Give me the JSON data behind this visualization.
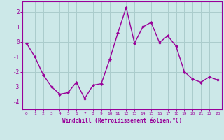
{
  "x": [
    0,
    1,
    2,
    3,
    4,
    5,
    6,
    7,
    8,
    9,
    10,
    11,
    12,
    13,
    14,
    15,
    16,
    17,
    18,
    19,
    20,
    21,
    22,
    23
  ],
  "y": [
    -0.1,
    -1.0,
    -2.2,
    -3.0,
    -3.5,
    -3.4,
    -2.7,
    -3.8,
    -2.9,
    -2.8,
    -1.2,
    0.6,
    2.3,
    -0.1,
    1.0,
    1.3,
    -0.05,
    0.4,
    -0.3,
    -2.0,
    -2.5,
    -2.7,
    -2.35,
    -2.55
  ],
  "line_color": "#990099",
  "marker": "D",
  "marker_size": 2.0,
  "background_color": "#cce8e8",
  "grid_color": "#aacccc",
  "xlabel": "Windchill (Refroidissement éolien,°C)",
  "xlabel_color": "#990099",
  "tick_color": "#990099",
  "ylim": [
    -4.5,
    2.7
  ],
  "xlim": [
    -0.5,
    23.5
  ],
  "yticks": [
    -4,
    -3,
    -2,
    -1,
    0,
    1,
    2
  ],
  "xticks": [
    0,
    1,
    2,
    3,
    4,
    5,
    6,
    7,
    8,
    9,
    10,
    11,
    12,
    13,
    14,
    15,
    16,
    17,
    18,
    19,
    20,
    21,
    22,
    23
  ],
  "xtick_labels": [
    "0",
    "1",
    "2",
    "3",
    "4",
    "5",
    "6",
    "7",
    "8",
    "9",
    "10",
    "11",
    "12",
    "13",
    "14",
    "15",
    "16",
    "17",
    "18",
    "19",
    "20",
    "21",
    "22",
    "23"
  ],
  "linewidth": 1.0,
  "spine_color": "#990099"
}
